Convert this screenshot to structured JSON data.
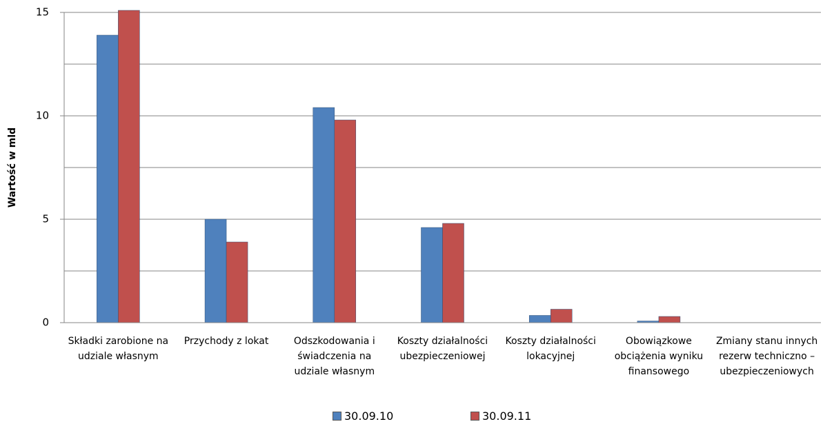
{
  "chart_data": {
    "type": "bar",
    "y_label": "Wartość w mld",
    "categories": [
      "Składki zarobione na udziale własnym",
      "Przychody z lokat",
      "Odszkodowania i świadczenia na udziale własnym",
      "Koszty działalności ubezpieczeniowej",
      "Koszty działalności lokacyjnej",
      "Obowiązkowe obciążenia wyniku finansowego",
      "Zmiany stanu innych rezerw techniczno – ubezpieczeniowych"
    ],
    "series": [
      {
        "name": "30.09.10",
        "color": "#4f81bd",
        "values": [
          13.9,
          5.0,
          10.4,
          4.6,
          0.35,
          0.08,
          null
        ]
      },
      {
        "name": "30.09.11",
        "color": "#c0504d",
        "values": [
          15.1,
          3.9,
          9.8,
          4.8,
          0.65,
          0.3,
          null
        ]
      }
    ],
    "ylim": [
      0,
      15
    ],
    "yticks": [
      0,
      5,
      10,
      15
    ],
    "minor_yticks": [
      2.5,
      7.5,
      12.5
    ],
    "grid": true,
    "legend": "bottom"
  }
}
